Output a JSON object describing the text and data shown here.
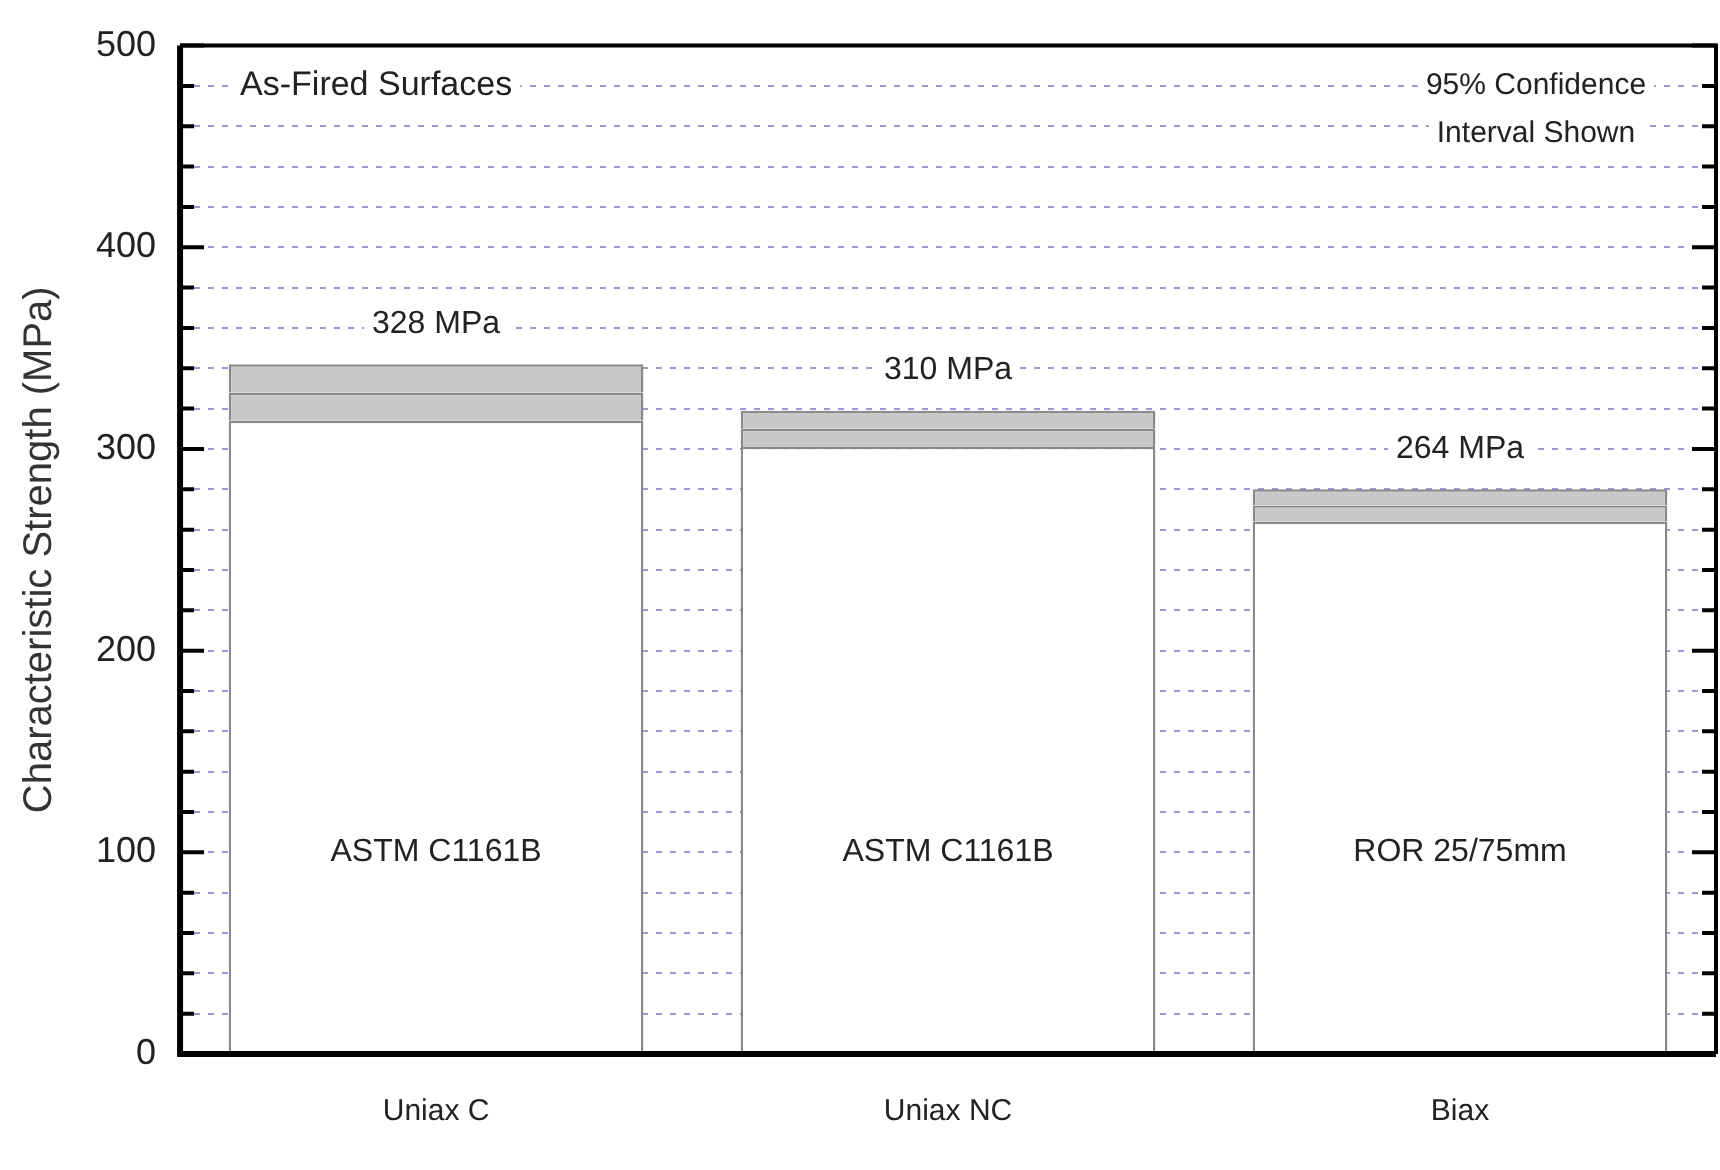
{
  "chart_data": {
    "type": "bar",
    "ylabel": "Characteristic Strength (MPa)",
    "categories": [
      "Uniax C",
      "Uniax NC",
      "Biax"
    ],
    "stacked": true,
    "series": [
      {
        "color": "#ffffff",
        "values": [
          314,
          301,
          264
        ]
      },
      {
        "color": "#c8c8c8",
        "values": [
          14,
          9,
          8
        ]
      },
      {
        "color": "#c8c8c8",
        "values": [
          14,
          9,
          8
        ]
      }
    ],
    "ylim": [
      0,
      500
    ],
    "yticks": [
      0,
      {
        "value": 20,
        "label": null
      },
      {
        "value": 40,
        "label": null
      },
      {
        "value": 60,
        "label": null
      },
      {
        "value": 80,
        "label": null
      },
      100,
      {
        "value": 120,
        "label": null
      },
      {
        "value": 140,
        "label": null
      },
      {
        "value": 160,
        "label": null
      },
      {
        "value": 180,
        "label": null
      },
      200,
      {
        "value": 220,
        "label": null
      },
      {
        "value": 240,
        "label": null
      },
      {
        "value": 260,
        "label": null
      },
      {
        "value": 280,
        "label": null
      },
      300,
      {
        "value": 320,
        "label": null
      },
      {
        "value": 340,
        "label": null
      },
      {
        "value": 360,
        "label": null
      },
      {
        "value": 380,
        "label": null
      },
      400,
      {
        "value": 420,
        "label": null
      },
      {
        "value": 440,
        "label": null
      },
      {
        "value": 460,
        "label": null
      },
      {
        "value": 480,
        "label": null
      },
      500
    ],
    "grid": "y",
    "legend": false,
    "annotations": [
      "As-Fired Surfaces",
      "95% Confidence Interval Shown",
      "ASTM C1161B",
      "ASTM C1161B",
      "ROR 25/75mm",
      {
        "text": "328 MPa",
        "x": "Uniax C",
        "y": 328
      },
      {
        "text": "310 MPa",
        "x": "Uniax NC",
        "y": 310
      },
      {
        "text": "264 MPa",
        "x": "Biax",
        "y": 264
      }
    ]
  }
}
